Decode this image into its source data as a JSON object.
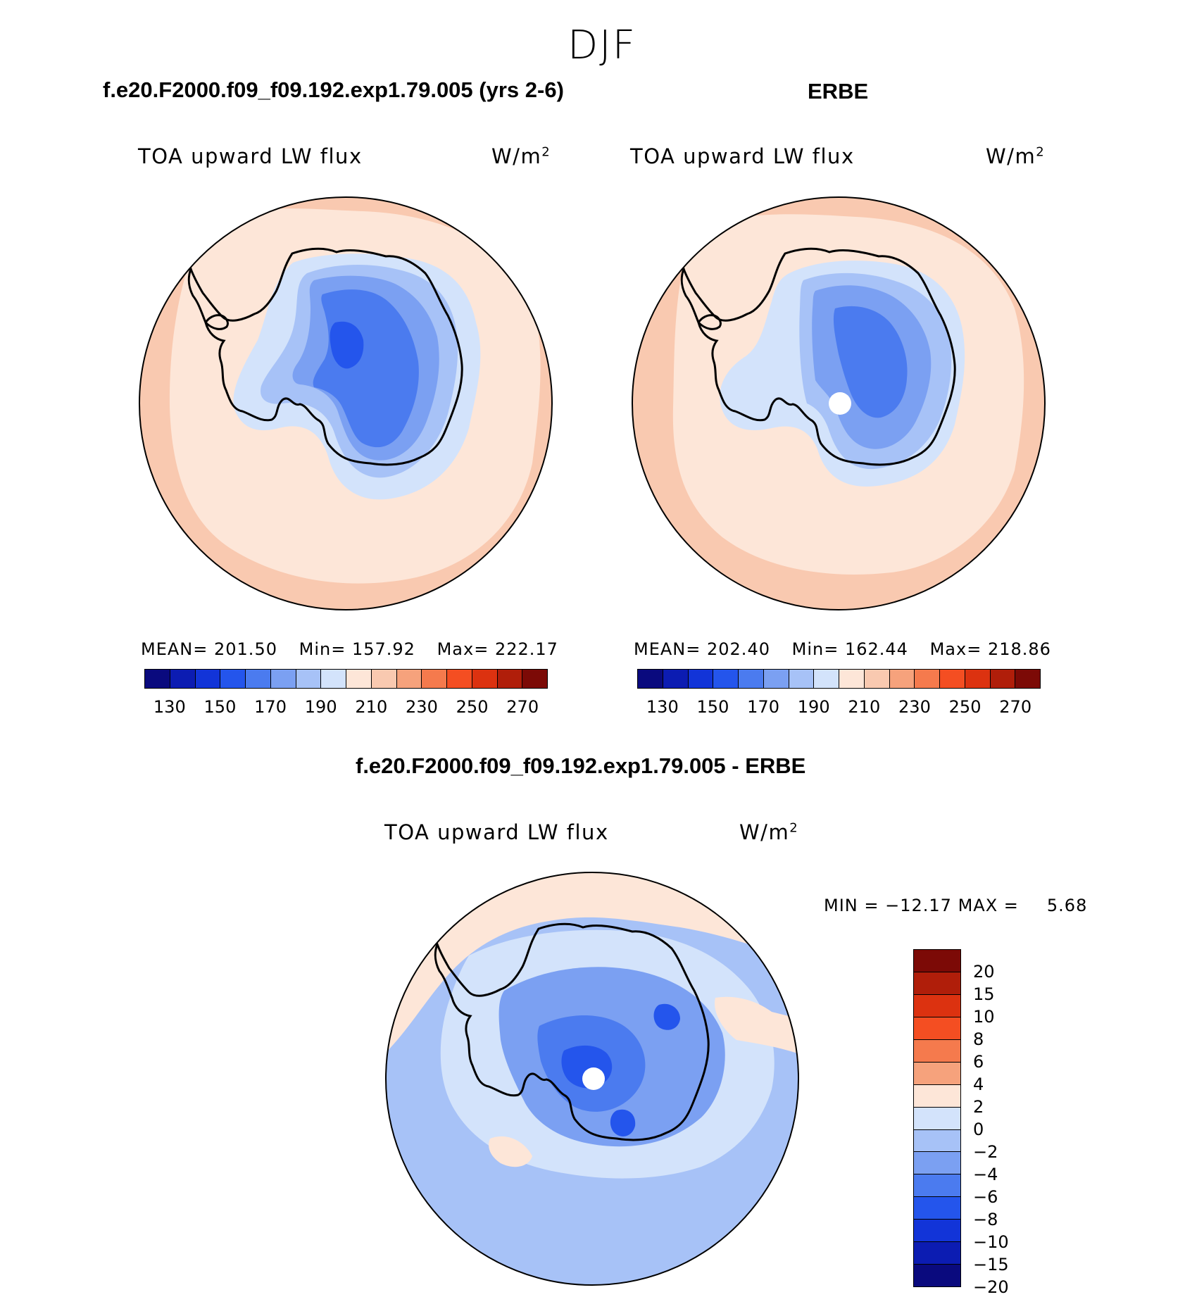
{
  "page_title": "DJF",
  "panels": {
    "model": {
      "title": "f.e20.F2000.f09_f09.192.exp1.79.005 (yrs 2-6)",
      "variable": "TOA upward LW flux",
      "units": "W/m",
      "units_exp": "2",
      "mean_label": "MEAN=",
      "mean_value": "201.50",
      "min_label": "Min=",
      "min_value": "157.92",
      "max_label": "Max=",
      "max_value": "222.17"
    },
    "obs": {
      "title": "ERBE",
      "variable": "TOA upward LW flux",
      "units": "W/m",
      "units_exp": "2",
      "mean_label": "MEAN=",
      "mean_value": "202.40",
      "min_label": "Min=",
      "min_value": "162.44",
      "max_label": "Max=",
      "max_value": "218.86"
    },
    "diff": {
      "title": "f.e20.F2000.f09_f09.192.exp1.79.005 - ERBE",
      "variable": "TOA upward LW flux",
      "units": "W/m",
      "units_exp": "2",
      "min_label": "MIN =",
      "min_value": "−12.17",
      "max_label": "MAX =",
      "max_value": "5.68"
    }
  },
  "colorbars": {
    "abs": {
      "colors": [
        "#0a0a7e",
        "#0c1cb2",
        "#1234d8",
        "#2455ec",
        "#4b7bef",
        "#7ba0f2",
        "#a7c2f7",
        "#d3e3fb",
        "#fde6d8",
        "#f9c9b0",
        "#f6a27c",
        "#f57a4d",
        "#f44e22",
        "#dc3210",
        "#b01e0a",
        "#7c0a06"
      ],
      "ticks": [
        "130",
        "150",
        "170",
        "190",
        "210",
        "230",
        "250",
        "270"
      ]
    },
    "diff": {
      "colors": [
        "#7c0a06",
        "#b01e0a",
        "#dc3210",
        "#f44e22",
        "#f57a4d",
        "#f6a27c",
        "#fde6d8",
        "#d3e3fb",
        "#a7c2f7",
        "#7ba0f2",
        "#4b7bef",
        "#2455ec",
        "#1234d8",
        "#0c1cb2",
        "#0a0a7e"
      ],
      "ticks": [
        "20",
        "15",
        "10",
        "8",
        "6",
        "4",
        "2",
        "0",
        "−2",
        "−4",
        "−6",
        "−8",
        "−10",
        "−15",
        "−20"
      ]
    }
  },
  "map_colors": {
    "outer_ring": "#f9c9b0",
    "ocean": "#fde6d8",
    "coast_zone": "#d3e3fb",
    "ice_1": "#a7c2f7",
    "ice_2": "#7ba0f2",
    "ice_3": "#4b7bef",
    "ice_4": "#2455ec",
    "diff_neutral_neg": "#d3e3fb",
    "diff_neg_1": "#a7c2f7",
    "diff_neg_2": "#7ba0f2",
    "diff_neg_3": "#4b7bef",
    "diff_neg_4": "#2455ec",
    "diff_pos_1": "#fde6d8",
    "diff_pos_2": "#f9c9b0",
    "diff_pos_3": "#f6a27c"
  }
}
